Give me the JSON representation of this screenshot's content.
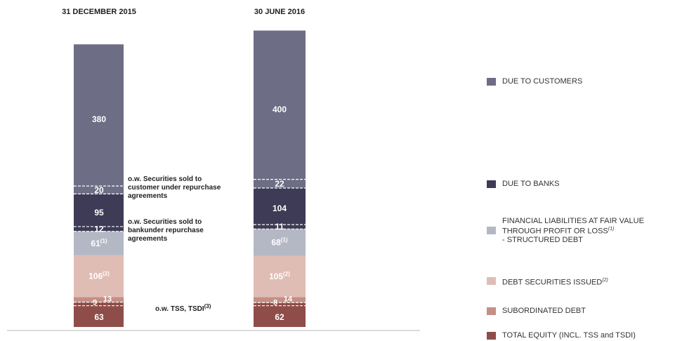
{
  "chart_data": {
    "type": "bar",
    "stacked": true,
    "categories": [
      "31 DECEMBER  2015",
      "30 JUNE 2016"
    ],
    "series": [
      {
        "name": "TOTAL EQUITY (INCL. TSS and TSDI)",
        "color": "#8e4d48",
        "values": [
          63,
          62
        ],
        "labels": [
          "63",
          "62"
        ]
      },
      {
        "name": "SUBORDINATED DEBT",
        "color": "#c68e84",
        "values": [
          13,
          14
        ],
        "labels": [
          "13",
          "14"
        ]
      },
      {
        "name": "DEBT SECURITIES ISSUED",
        "footnote": "(2)",
        "color": "#dfbdb5",
        "values": [
          106,
          105
        ],
        "labels": [
          "106",
          "105"
        ],
        "label_footnote": "(2)"
      },
      {
        "name": "FINANCIAL LIABILITIES AT FAIR VALUE THROUGH PROFIT OR LOSS - STRUCTURED DEBT",
        "footnote": "(1)",
        "color": "#b3b8c4",
        "values": [
          61,
          68
        ],
        "labels": [
          "61",
          "68"
        ],
        "label_footnote": "(1)"
      },
      {
        "name": "DUE TO BANKS",
        "color": "#3d3b56",
        "values": [
          95,
          104
        ],
        "labels": [
          "95",
          "104"
        ]
      },
      {
        "name": "DUE TO CUSTOMERS",
        "color": "#6d6d85",
        "values": [
          380,
          400
        ],
        "labels": [
          "380",
          "400"
        ]
      }
    ],
    "of_which": [
      {
        "name": "o.w. TSS, TSDI",
        "footnote": "(3)",
        "within": "TOTAL EQUITY (INCL. TSS and TSDI)",
        "values": [
          9,
          8
        ],
        "labels": [
          "9",
          "8"
        ]
      },
      {
        "name": "o.w. Securities sold to bankunder repurchase agreements",
        "within": "DUE TO BANKS",
        "values": [
          12,
          11
        ],
        "labels": [
          "12",
          "11"
        ]
      },
      {
        "name": "o.w. Securities sold to customer under repurchase agreements",
        "within": "DUE TO CUSTOMERS",
        "values": [
          20,
          22
        ],
        "labels": [
          "20",
          "22"
        ]
      }
    ],
    "xlabel": "",
    "ylabel": "",
    "legend_position": "right",
    "grid": false
  },
  "annotations": {
    "securities_customer": [
      "o.w. Securities sold to",
      "customer under repurchase",
      "agreements"
    ],
    "securities_bank": [
      "o.w. Securities sold to",
      "bankunder repurchase",
      "agreements"
    ],
    "tss": "o.w. TSS, TSDI",
    "tss_footnote": "(3)"
  },
  "legend": [
    {
      "color": "#6d6d85",
      "lines": [
        "DUE TO CUSTOMERS"
      ],
      "footnote": ""
    },
    {
      "color": "#3d3b56",
      "lines": [
        "DUE TO BANKS"
      ],
      "footnote": ""
    },
    {
      "color": "#b3b8c4",
      "lines": [
        "FINANCIAL LIABILITIES AT FAIR VALUE",
        "THROUGH PROFIT OR LOSS",
        "- STRUCTURED DEBT"
      ],
      "footnote": "(1)"
    },
    {
      "color": "#dfbdb5",
      "lines": [
        "DEBT SECURITIES ISSUED"
      ],
      "footnote": "(2)"
    },
    {
      "color": "#c68e84",
      "lines": [
        "SUBORDINATED DEBT"
      ],
      "footnote": ""
    },
    {
      "color": "#8e4d48",
      "lines": [
        "TOTAL EQUITY (INCL. TSS and TSDI)"
      ],
      "footnote": ""
    }
  ]
}
